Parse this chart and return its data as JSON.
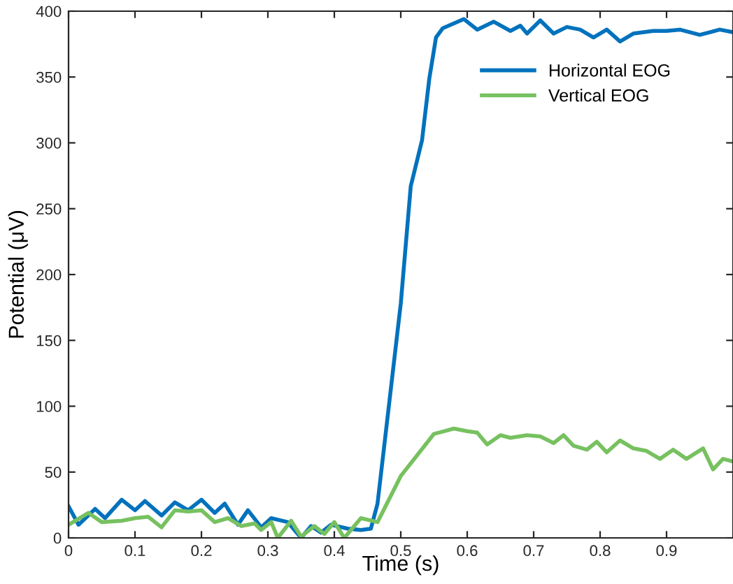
{
  "chart_data": {
    "type": "line",
    "xlabel": "Time (s)",
    "ylabel": "Potential (μV)",
    "xlim": [
      0,
      1
    ],
    "ylim": [
      0,
      400
    ],
    "xticks": [
      0,
      0.1,
      0.2,
      0.3,
      0.4,
      0.5,
      0.6,
      0.7,
      0.8,
      0.9
    ],
    "yticks": [
      0,
      50,
      100,
      150,
      200,
      250,
      300,
      350,
      400
    ],
    "grid": false,
    "legend": "top right",
    "marker": "none",
    "line_style": "solid",
    "series": [
      {
        "name": "Horizontal EOG",
        "color": "#0072bd",
        "x": [
          0,
          0.015,
          0.04,
          0.055,
          0.08,
          0.1,
          0.115,
          0.14,
          0.16,
          0.18,
          0.2,
          0.22,
          0.235,
          0.255,
          0.27,
          0.29,
          0.305,
          0.33,
          0.35,
          0.365,
          0.38,
          0.395,
          0.42,
          0.44,
          0.455,
          0.465,
          0.5,
          0.515,
          0.532,
          0.543,
          0.553,
          0.563,
          0.595,
          0.615,
          0.64,
          0.665,
          0.68,
          0.69,
          0.71,
          0.73,
          0.75,
          0.77,
          0.79,
          0.81,
          0.83,
          0.85,
          0.88,
          0.9,
          0.92,
          0.95,
          0.98,
          1.0
        ],
        "values": [
          24,
          10,
          22,
          15,
          29,
          21,
          28,
          17,
          27,
          21,
          29,
          19,
          26,
          10,
          21,
          8,
          15,
          12,
          0,
          9,
          4,
          10,
          7,
          6,
          7,
          26,
          178,
          267,
          302,
          349,
          380,
          387,
          394,
          386,
          392,
          385,
          389,
          383,
          393,
          383,
          388,
          386,
          380,
          386,
          377,
          383,
          385,
          385,
          386,
          382,
          386,
          384
        ]
      },
      {
        "name": "Vertical EOG",
        "color": "#77c160",
        "x": [
          0,
          0.03,
          0.05,
          0.08,
          0.1,
          0.12,
          0.14,
          0.16,
          0.18,
          0.2,
          0.22,
          0.24,
          0.26,
          0.28,
          0.29,
          0.305,
          0.315,
          0.335,
          0.35,
          0.37,
          0.385,
          0.4,
          0.415,
          0.44,
          0.465,
          0.5,
          0.525,
          0.55,
          0.565,
          0.58,
          0.6,
          0.615,
          0.63,
          0.65,
          0.665,
          0.69,
          0.71,
          0.73,
          0.745,
          0.76,
          0.78,
          0.795,
          0.81,
          0.83,
          0.85,
          0.87,
          0.89,
          0.91,
          0.93,
          0.955,
          0.97,
          0.985,
          1.0
        ],
        "values": [
          10,
          19,
          12,
          13,
          15,
          16,
          8,
          21,
          20,
          21,
          12,
          15,
          9,
          11,
          6,
          12,
          0,
          13,
          1,
          9,
          3,
          12,
          0,
          15,
          12,
          47,
          63,
          79,
          81,
          83,
          81,
          80,
          71,
          78,
          76,
          78,
          77,
          72,
          78,
          70,
          67,
          73,
          65,
          74,
          68,
          66,
          60,
          67,
          60,
          68,
          52,
          60,
          58
        ]
      }
    ]
  }
}
